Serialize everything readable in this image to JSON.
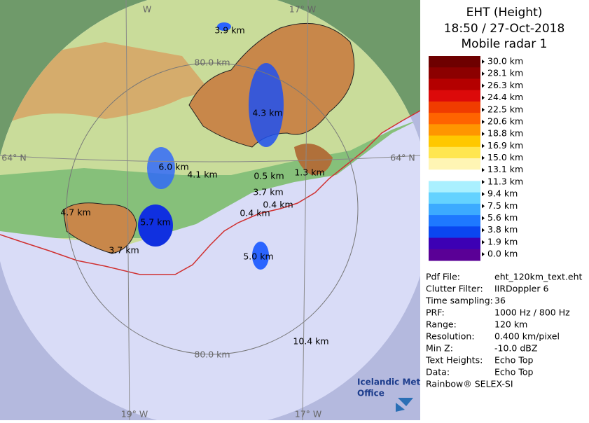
{
  "header": {
    "title": "EHT (Height)",
    "time": "18:50 / 27-Oct-2018",
    "source": "Mobile radar 1"
  },
  "legend": {
    "labels": [
      "30.0 km",
      "28.1 km",
      "26.3 km",
      "24.4 km",
      "22.5 km",
      "20.6 km",
      "18.8 km",
      "16.9 km",
      "15.0 km",
      "13.1 km",
      "11.3 km",
      "9.4 km",
      "7.5 km",
      "5.6 km",
      "3.8 km",
      "1.9 km",
      "0.0 km"
    ],
    "colors": [
      "#6e0000",
      "#8c0000",
      "#b40000",
      "#dc0a0a",
      "#f03c00",
      "#ff6400",
      "#ff9600",
      "#ffc800",
      "#ffe650",
      "#fff5b4",
      "#ffffff",
      "#aaf0ff",
      "#64d2ff",
      "#3caaff",
      "#1e78ff",
      "#0a46f0",
      "#3c00b4",
      "#5a0096"
    ]
  },
  "info": {
    "rows": [
      [
        "Pdf File:",
        "eht_120km_text.eht"
      ],
      [
        "Clutter Filter:",
        "IIRDoppler 6"
      ],
      [
        "Time sampling:",
        "36"
      ],
      [
        "PRF:",
        "1000 Hz / 800 Hz"
      ],
      [
        "Range:",
        "120 km"
      ],
      [
        "Resolution:",
        "0.400 km/pixel"
      ],
      [
        "Min Z:",
        "-10.0 dBZ"
      ],
      [
        "Text Heights:",
        "Echo Top"
      ],
      [
        "Data:",
        "Echo Top"
      ]
    ],
    "footer": "Rainbow® SELEX-SI"
  },
  "map": {
    "grid_labels": [
      "W",
      "17° W",
      "80.0 km",
      "64° N",
      "64° N",
      "80.0 km",
      "19° W",
      "17° W"
    ],
    "echo_labels": [
      "3.9 km",
      "4.3 km",
      "6.0 km",
      "4.1 km",
      "0.5 km",
      "1.3 km",
      "3.7 km",
      "0.4 km",
      "0.4 km",
      "4.7 km",
      "5.7 km",
      "3.7 km",
      "5.0 km",
      "10.4 km"
    ],
    "logo": [
      "Icelandic Met",
      "Office"
    ]
  }
}
